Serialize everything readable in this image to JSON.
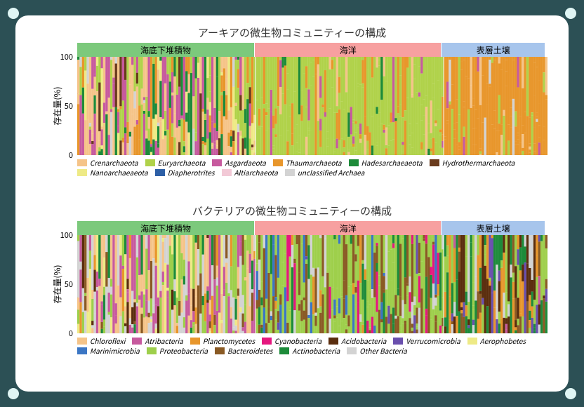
{
  "frame": {
    "bg": "#2c5055",
    "panel_bg": "#ffffff",
    "panel_radius": 18,
    "corner_fill": "#dff5f4",
    "corner_border": "#2c5055"
  },
  "groups": {
    "items": [
      {
        "label": "海底下堆積物",
        "color": "#7cc97c",
        "frac": 0.38
      },
      {
        "label": "海洋",
        "color": "#f7a0a0",
        "frac": 0.4
      },
      {
        "label": "表層土壌",
        "color": "#a7c5ec",
        "frac": 0.22
      }
    ],
    "label_fontsize": 12
  },
  "y_axis": {
    "label": "存在量(%)",
    "ticks": [
      0,
      50,
      100
    ],
    "ylim": [
      0,
      100
    ],
    "fontsize": 11,
    "label_fontsize": 12
  },
  "chart_top": {
    "title": "アーキアの微生物コミュニティーの構成",
    "title_fontsize": 15,
    "type": "stacked-bar",
    "n_bars_per_group": {
      "g0": 76,
      "g1": 80,
      "g2": 44
    },
    "legend": [
      {
        "key": "Crenarchaeota",
        "color": "#f5c489"
      },
      {
        "key": "Euryarchaeota",
        "color": "#b0d24a"
      },
      {
        "key": "Asgardaeota",
        "color": "#c75a9e"
      },
      {
        "key": "Thaumarchaeota",
        "color": "#e8962b"
      },
      {
        "key": "Hadesarchaeaeota",
        "color": "#1d8b3a"
      },
      {
        "key": "Hydrothermarchaeota",
        "color": "#6a3b1d"
      },
      {
        "key": "Nanoarchaeaeota",
        "color": "#eeea86"
      },
      {
        "key": "Diapherotrites",
        "color": "#2d5fa6"
      },
      {
        "key": "Altiarchaeota",
        "color": "#f2c9d6"
      },
      {
        "key": "unclassified Archaea",
        "color": "#d3d3d3"
      }
    ],
    "mix": {
      "g0": [
        {
          "c": "#f5c489",
          "w": 22
        },
        {
          "c": "#c75a9e",
          "w": 20
        },
        {
          "c": "#b0d24a",
          "w": 18
        },
        {
          "c": "#1d8b3a",
          "w": 14
        },
        {
          "c": "#e8962b",
          "w": 10
        },
        {
          "c": "#eeea86",
          "w": 8
        },
        {
          "c": "#6a3b1d",
          "w": 4
        },
        {
          "c": "#d3d3d3",
          "w": 4
        }
      ],
      "g1": [
        {
          "c": "#b0d24a",
          "w": 70
        },
        {
          "c": "#e8962b",
          "w": 18
        },
        {
          "c": "#f5c489",
          "w": 5
        },
        {
          "c": "#c75a9e",
          "w": 4
        },
        {
          "c": "#1d8b3a",
          "w": 3
        }
      ],
      "g2": [
        {
          "c": "#e8962b",
          "w": 78
        },
        {
          "c": "#b0d24a",
          "w": 10
        },
        {
          "c": "#f5c489",
          "w": 6
        },
        {
          "c": "#c75a9e",
          "w": 3
        },
        {
          "c": "#d3d3d3",
          "w": 3
        }
      ]
    }
  },
  "chart_bottom": {
    "title": "バクテリアの微生物コミュニティーの構成",
    "title_fontsize": 15,
    "type": "stacked-bar",
    "n_bars_per_group": {
      "g0": 76,
      "g1": 80,
      "g2": 44
    },
    "legend": [
      {
        "key": "Chloroflexi",
        "color": "#f5c489"
      },
      {
        "key": "Atribacteria",
        "color": "#c75a9e"
      },
      {
        "key": "Planctomycetes",
        "color": "#e8962b"
      },
      {
        "key": "Cyanobacteria",
        "color": "#e5177e"
      },
      {
        "key": "Acidobacteria",
        "color": "#5a2d0d"
      },
      {
        "key": "Verrucomicrobia",
        "color": "#6a4fae"
      },
      {
        "key": "Aerophobetes",
        "color": "#eeea86"
      },
      {
        "key": "Marinimicrobia",
        "color": "#3b76c4"
      },
      {
        "key": "Proteobacteria",
        "color": "#9ecf4b"
      },
      {
        "key": "Bacteroidetes",
        "color": "#8a5a24"
      },
      {
        "key": "Actinobacteria",
        "color": "#1d8b3a"
      },
      {
        "key": "Other Bacteria",
        "color": "#d3d3d3"
      }
    ],
    "mix": {
      "g0": [
        {
          "c": "#f5c489",
          "w": 16
        },
        {
          "c": "#c75a9e",
          "w": 18
        },
        {
          "c": "#9ecf4b",
          "w": 14
        },
        {
          "c": "#eeea86",
          "w": 8
        },
        {
          "c": "#8a5a24",
          "w": 6
        },
        {
          "c": "#d3d3d3",
          "w": 24
        },
        {
          "c": "#1d8b3a",
          "w": 6
        },
        {
          "c": "#e8962b",
          "w": 4
        },
        {
          "c": "#5a2d0d",
          "w": 4
        }
      ],
      "g1": [
        {
          "c": "#9ecf4b",
          "w": 50
        },
        {
          "c": "#8a5a24",
          "w": 18
        },
        {
          "c": "#3b76c4",
          "w": 8
        },
        {
          "c": "#e5177e",
          "w": 6
        },
        {
          "c": "#d3d3d3",
          "w": 10
        },
        {
          "c": "#1d8b3a",
          "w": 4
        },
        {
          "c": "#e8962b",
          "w": 2
        },
        {
          "c": "#6a4fae",
          "w": 2
        }
      ],
      "g2": [
        {
          "c": "#e8962b",
          "w": 18
        },
        {
          "c": "#9ecf4b",
          "w": 22
        },
        {
          "c": "#1d8b3a",
          "w": 18
        },
        {
          "c": "#5a2d0d",
          "w": 14
        },
        {
          "c": "#6a4fae",
          "w": 10
        },
        {
          "c": "#8a5a24",
          "w": 8
        },
        {
          "c": "#d3d3d3",
          "w": 6
        },
        {
          "c": "#c75a9e",
          "w": 4
        }
      ]
    }
  }
}
